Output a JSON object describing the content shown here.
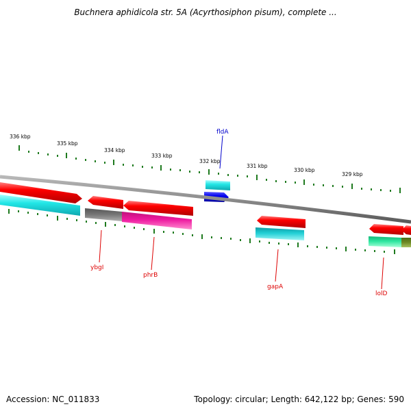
{
  "title": "Buchnera aphidicola str. 5A (Acyrthosiphon pisum), complete ...",
  "footer": {
    "accession": "Accession: NC_011833",
    "summary": "Topology: circular; Length: 642,122 bp; Genes: 590"
  },
  "scale_labels": [
    "336 kbp",
    "335 kbp",
    "334 kbp",
    "333 kbp",
    "332 kbp",
    "331 kbp",
    "330 kbp",
    "329 kbp"
  ],
  "gene_labels": {
    "fldA": "fldA",
    "ybgI": "ybgI",
    "phrB": "phrB",
    "gapA": "gapA",
    "lolD": "lolD"
  },
  "colors": {
    "backbone": "#8c8c8c",
    "tick": "#1e7a1e",
    "forward_cds": "#ff0000",
    "cyan_track": "#22e6e6",
    "teal_track": "#1fc2c8",
    "blue_gene": "#0000ee",
    "gray_track": "#777777",
    "magenta_track": "#ee1aa0",
    "green_track": "#2ee6a0",
    "olive_track": "#6e8a26",
    "label_forward": "#0000cc",
    "label_reverse": "#dd0000"
  }
}
